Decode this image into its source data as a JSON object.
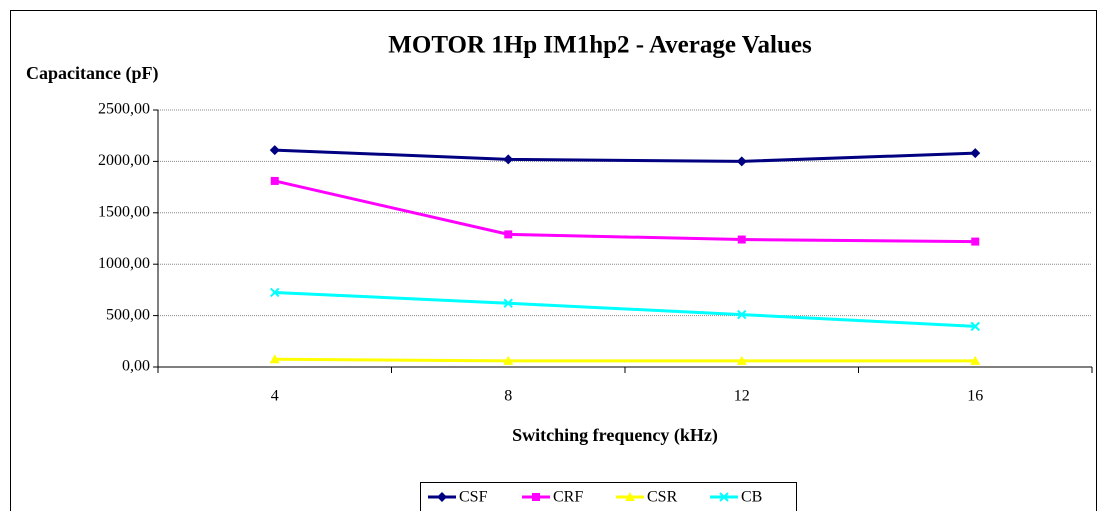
{
  "chart_data": {
    "type": "line",
    "title": "MOTOR 1Hp IM1hp2 - Average Values",
    "y_label": "Capacitance (pF)",
    "x_label": "Switching frequency (kHz)",
    "categories": [
      "4",
      "8",
      "12",
      "16"
    ],
    "series": [
      {
        "name": "CSF",
        "color": "#000080",
        "marker": "diamond",
        "values": [
          2110,
          2020,
          2000,
          2080
        ]
      },
      {
        "name": "CRF",
        "color": "#ff00ff",
        "marker": "square",
        "values": [
          1810,
          1290,
          1240,
          1220
        ]
      },
      {
        "name": "CSR",
        "color": "#ffff00",
        "marker": "triangle",
        "values": [
          75,
          60,
          60,
          60
        ]
      },
      {
        "name": "CB",
        "color": "#00ffff",
        "marker": "x",
        "values": [
          725,
          620,
          510,
          395
        ]
      }
    ],
    "ylim": [
      0,
      2500
    ],
    "yticks": [
      {
        "value": 0,
        "label": "0,00"
      },
      {
        "value": 500,
        "label": "500,00"
      },
      {
        "value": 1000,
        "label": "1000,00"
      },
      {
        "value": 1500,
        "label": "1500,00"
      },
      {
        "value": 2000,
        "label": "2000,00"
      },
      {
        "value": 2500,
        "label": "2500,00"
      }
    ],
    "grid": true,
    "legend": "bottom"
  }
}
